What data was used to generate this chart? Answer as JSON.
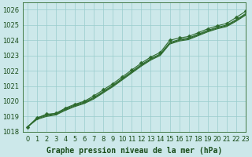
{
  "title": "Graphe pression niveau de la mer (hPa)",
  "background_color": "#cce8ea",
  "grid_color": "#99cccc",
  "line_color": "#2d6a2d",
  "xlim": [
    -0.5,
    23
  ],
  "ylim": [
    1018,
    1026.5
  ],
  "xticks": [
    0,
    1,
    2,
    3,
    4,
    5,
    6,
    7,
    8,
    9,
    10,
    11,
    12,
    13,
    14,
    15,
    16,
    17,
    18,
    19,
    20,
    21,
    22,
    23
  ],
  "yticks": [
    1018,
    1019,
    1020,
    1021,
    1022,
    1023,
    1024,
    1025,
    1026
  ],
  "series": [
    [
      1018.3,
      1018.9,
      1019.15,
      1019.2,
      1019.55,
      1019.8,
      1020.0,
      1020.35,
      1020.75,
      1021.15,
      1021.6,
      1022.05,
      1022.5,
      1022.9,
      1023.2,
      1024.0,
      1024.15,
      1024.25,
      1024.5,
      1024.75,
      1024.95,
      1025.1,
      1025.5,
      1025.9
    ],
    [
      1018.3,
      1018.9,
      1019.1,
      1019.2,
      1019.5,
      1019.75,
      1019.95,
      1020.25,
      1020.65,
      1021.05,
      1021.5,
      1021.95,
      1022.4,
      1022.8,
      1023.1,
      1023.85,
      1024.05,
      1024.15,
      1024.4,
      1024.65,
      1024.85,
      1025.0,
      1025.35,
      1025.75
    ],
    [
      1018.3,
      1018.85,
      1019.05,
      1019.15,
      1019.45,
      1019.7,
      1019.9,
      1020.2,
      1020.6,
      1021.0,
      1021.45,
      1021.9,
      1022.35,
      1022.75,
      1023.05,
      1023.8,
      1024.0,
      1024.1,
      1024.35,
      1024.6,
      1024.8,
      1024.95,
      1025.3,
      1025.7
    ],
    [
      1018.3,
      1018.8,
      1019.0,
      1019.1,
      1019.4,
      1019.65,
      1019.85,
      1020.15,
      1020.55,
      1020.95,
      1021.4,
      1021.85,
      1022.3,
      1022.7,
      1023.0,
      1023.75,
      1023.95,
      1024.05,
      1024.3,
      1024.55,
      1024.75,
      1024.9,
      1025.25,
      1025.65
    ]
  ],
  "marker": "D",
  "marker_size": 2.5,
  "font_color": "#1a4d1a",
  "font_size_label": 7,
  "font_size_tick": 6
}
